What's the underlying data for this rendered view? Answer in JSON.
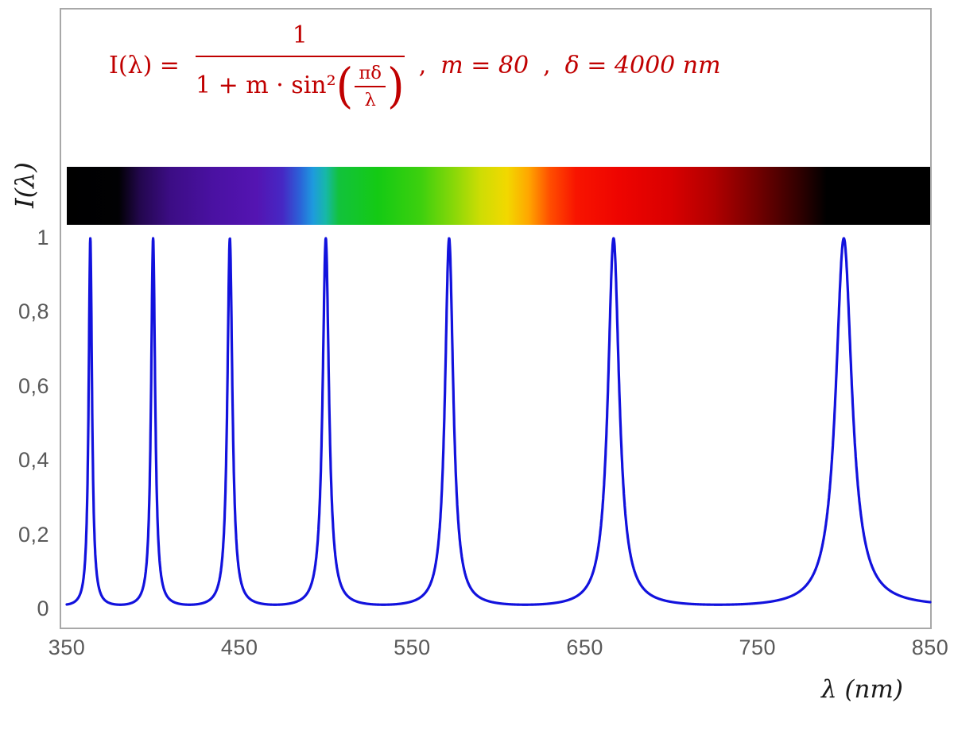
{
  "figure": {
    "formula": {
      "lhs": "I(λ) =",
      "numerator": "1",
      "denominator_prefix": "1 + m · sin²",
      "inner_numerator": "πδ",
      "inner_denominator": "λ",
      "open_paren": "(",
      "close_paren": ")",
      "separator1": ",",
      "param_m": "m = 80",
      "separator2": ",",
      "param_delta": "δ = 4000 nm",
      "color": "#c00000"
    },
    "y_axis_title": "I(λ)",
    "x_axis_title": "λ  (nm)"
  },
  "chart_data": {
    "type": "line",
    "title": "I(λ) = 1 / (1 + m·sin²(πδ/λ)) ,  m = 80 ,  δ = 4000 nm",
    "parameters": {
      "m": 80,
      "delta_nm": 4000
    },
    "x_axis": {
      "label": "λ (nm)",
      "min": 350,
      "max": 850,
      "ticks": [
        350,
        450,
        550,
        650,
        750,
        850
      ],
      "tick_labels": [
        "350",
        "450",
        "550",
        "650",
        "750",
        "850"
      ]
    },
    "y_axis": {
      "label": "I(λ)",
      "min": 0,
      "max": 1,
      "ticks": [
        0,
        0.2,
        0.4,
        0.6,
        0.8,
        1
      ],
      "tick_labels": [
        "0",
        "0,2",
        "0,4",
        "0,6",
        "0,8",
        "1"
      ]
    },
    "grid": false,
    "legend": false,
    "line_color": "#1212dd",
    "line_width": 3.2,
    "peaks_nm": [
      363.6,
      400.0,
      444.4,
      500.0,
      571.4,
      666.7,
      800.0
    ],
    "peak_value": 1.0,
    "baseline_min_value": 0.012,
    "spectrum_bar": {
      "description": "visible-light spectrum strip aligned to the same 350–850 nm axis, black outside the visible range",
      "stops": [
        {
          "pos": 0,
          "color": "#000000"
        },
        {
          "pos": 6,
          "color": "#010103"
        },
        {
          "pos": 8.5,
          "color": "#23074e"
        },
        {
          "pos": 12,
          "color": "#3c0d85"
        },
        {
          "pos": 17,
          "color": "#4a11a2"
        },
        {
          "pos": 22,
          "color": "#5414b2"
        },
        {
          "pos": 25,
          "color": "#4628c4"
        },
        {
          "pos": 27,
          "color": "#2b62d8"
        },
        {
          "pos": 28.5,
          "color": "#1e9ade"
        },
        {
          "pos": 30,
          "color": "#17b8a8"
        },
        {
          "pos": 31.5,
          "color": "#12c23c"
        },
        {
          "pos": 36,
          "color": "#14ca14"
        },
        {
          "pos": 41,
          "color": "#3dd00e"
        },
        {
          "pos": 45,
          "color": "#8cd808"
        },
        {
          "pos": 48,
          "color": "#cfdd04"
        },
        {
          "pos": 51,
          "color": "#f2d800"
        },
        {
          "pos": 53.5,
          "color": "#ffa600"
        },
        {
          "pos": 56,
          "color": "#ff4d00"
        },
        {
          "pos": 59,
          "color": "#f81400"
        },
        {
          "pos": 64,
          "color": "#ee0400"
        },
        {
          "pos": 70,
          "color": "#d90000"
        },
        {
          "pos": 75,
          "color": "#b00000"
        },
        {
          "pos": 80,
          "color": "#720000"
        },
        {
          "pos": 85,
          "color": "#2e0000"
        },
        {
          "pos": 88,
          "color": "#000000"
        },
        {
          "pos": 100,
          "color": "#000000"
        }
      ]
    }
  }
}
